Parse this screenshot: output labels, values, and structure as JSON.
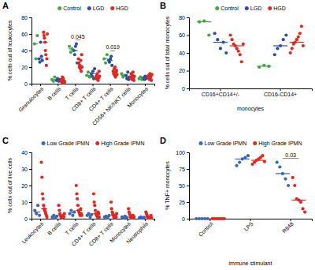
{
  "chart_data": [
    {
      "type": "scatter",
      "title": "A",
      "y_label": "% cells out of leukocytes",
      "legend": "top",
      "categories": [
        "Granulocytes",
        "B cells",
        "T cells",
        "CD8+ T cells",
        "CD4+ T cells",
        "CD56+ NK/NKT cells",
        "Monocytes"
      ],
      "ylim": [
        0,
        80
      ],
      "yticks": [
        0,
        20,
        40,
        60,
        80
      ],
      "series": [
        {
          "name": "Control",
          "color": "#43a843",
          "marker": "circle",
          "values": [
            [
              48,
              30,
              58
            ],
            [
              5,
              3,
              8
            ],
            [
              45,
              38,
              42
            ],
            [
              10,
              14,
              8
            ],
            [
              30,
              25,
              35
            ],
            [
              12,
              8,
              10
            ],
            [
              6,
              8,
              5
            ]
          ],
          "medians": [
            48,
            5,
            42,
            10,
            30,
            10,
            6
          ]
        },
        {
          "name": "LGD",
          "color": "#2f4fa3",
          "marker": "circle",
          "values": [
            [
              30,
              26,
              50,
              33,
              28
            ],
            [
              4,
              6,
              3,
              5
            ],
            [
              40,
              35,
              45,
              48,
              25
            ],
            [
              12,
              9,
              15,
              6,
              18
            ],
            [
              28,
              26,
              30,
              33,
              22
            ],
            [
              10,
              6,
              14,
              5,
              8
            ],
            [
              7,
              5,
              9,
              6,
              8
            ]
          ],
          "medians": [
            30,
            4.5,
            40,
            12,
            28,
            8,
            7
          ]
        },
        {
          "name": "HGD",
          "color": "#e5261f",
          "marker": "circle",
          "values": [
            [
              62,
              58,
              55,
              50,
              40,
              35,
              22,
              30,
              60
            ],
            [
              3,
              5,
              2,
              8,
              4,
              6,
              1,
              3,
              2
            ],
            [
              30,
              25,
              20,
              22,
              18,
              28,
              15,
              35,
              20
            ],
            [
              8,
              6,
              10,
              12,
              5,
              4,
              7,
              15,
              9
            ],
            [
              15,
              12,
              18,
              10,
              20,
              8,
              14,
              16,
              11
            ],
            [
              8,
              12,
              6,
              5,
              10,
              14,
              7,
              4,
              9
            ],
            [
              8,
              10,
              6,
              5,
              12,
              7,
              9,
              4,
              11
            ]
          ],
          "medians": [
            50,
            3,
            22,
            8,
            14,
            8,
            8
          ]
        }
      ],
      "annotations": [
        {
          "text": "0.045",
          "category": "T cells"
        },
        {
          "text": "0.019",
          "category": "CD4+ T cells"
        }
      ]
    },
    {
      "type": "scatter",
      "title": "B",
      "y_label": "% cells out of total monocytes",
      "x_label": "monocytes",
      "legend": "top",
      "categories": [
        "CD16+CD14+/-",
        "CD16-CD14+"
      ],
      "ylim": [
        0,
        80
      ],
      "yticks": [
        0,
        20,
        40,
        60,
        80
      ],
      "series": [
        {
          "name": "Control",
          "color": "#43a843",
          "marker": "circle",
          "values": [
            [
              75,
              76,
              60
            ],
            [
              24,
              26,
              25
            ]
          ],
          "medians": [
            75,
            25
          ]
        },
        {
          "name": "LGD",
          "color": "#2f4fa3",
          "marker": "circle",
          "values": [
            [
              62,
              55,
              45,
              52,
              40
            ],
            [
              38,
              45,
              48,
              55,
              60
            ]
          ],
          "medians": [
            52,
            48
          ]
        },
        {
          "name": "HGD",
          "color": "#e5261f",
          "marker": "circle",
          "values": [
            [
              60,
              55,
              50,
              48,
              45,
              42,
              38,
              30,
              50
            ],
            [
              40,
              45,
              50,
              52,
              55,
              58,
              62,
              70,
              48
            ]
          ],
          "medians": [
            48,
            52
          ]
        }
      ]
    },
    {
      "type": "scatter",
      "title": "C",
      "y_label": "% cells out of live cells",
      "legend": "top",
      "categories": [
        "Leukocytes",
        "B cells",
        "T cells",
        "CD4+ T cells",
        "CD8+ T cells",
        "Monocytes",
        "Neutrophils"
      ],
      "ylim": [
        0,
        40
      ],
      "yticks": [
        0,
        10,
        20,
        30,
        40
      ],
      "series": [
        {
          "name": "Low Grade IPMN",
          "color": "#3a67b8",
          "marker": "circle",
          "values": [
            [
              5,
              3,
              8,
              2
            ],
            [
              1,
              2,
              0.5,
              1.5
            ],
            [
              3,
              5,
              2,
              4
            ],
            [
              2,
              3,
              1,
              2.5
            ],
            [
              1,
              1.5,
              0.5,
              2
            ],
            [
              1,
              0.5,
              1.5,
              0.8
            ],
            [
              0.5,
              1,
              0.3,
              0.8
            ]
          ],
          "medians": [
            4,
            1.2,
            3.5,
            2.2,
            1.2,
            0.9,
            0.6
          ]
        },
        {
          "name": "High Grade IPMN",
          "color": "#e5261f",
          "marker": "circle",
          "values": [
            [
              34,
              25,
              15,
              12,
              8,
              6,
              5,
              4,
              3,
              2,
              1
            ],
            [
              8,
              5,
              3,
              2,
              1,
              1,
              0.5,
              0.5,
              2,
              1,
              3
            ],
            [
              20,
              15,
              12,
              8,
              5,
              4,
              3,
              2,
              6,
              3,
              2
            ],
            [
              15,
              10,
              8,
              5,
              3,
              2,
              2,
              1,
              4,
              3,
              1
            ],
            [
              10,
              6,
              4,
              3,
              2,
              1,
              1,
              0.5,
              2,
              1,
              3
            ],
            [
              6,
              4,
              3,
              2,
              1,
              1,
              0.5,
              0.5,
              2,
              1,
              1
            ],
            [
              4,
              3,
              2,
              1,
              1,
              0.5,
              0.5,
              0.3,
              1,
              2,
              0.5
            ]
          ],
          "medians": [
            6,
            2,
            5,
            3,
            2,
            1,
            1
          ]
        }
      ]
    },
    {
      "type": "scatter",
      "title": "D",
      "y_label": "% TNF+ monocytes",
      "x_label": "immune stimulant",
      "legend": "top",
      "categories": [
        "Control",
        "LPS",
        "R848"
      ],
      "ylim": [
        0,
        100
      ],
      "yticks": [
        0,
        25,
        50,
        75,
        100
      ],
      "series": [
        {
          "name": "Low Grade IPMN",
          "color": "#3a67b8",
          "marker": "circle",
          "values": [
            [
              0,
              0,
              0,
              0,
              0
            ],
            [
              80,
              85,
              90,
              92,
              95
            ],
            [
              85,
              78,
              68,
              60,
              50
            ]
          ],
          "medians": [
            0,
            90,
            68
          ]
        },
        {
          "name": "High Grade IPMN",
          "color": "#e5261f",
          "marker": "circle",
          "values": [
            [
              0,
              0,
              0,
              0,
              0,
              0,
              0
            ],
            [
              82,
              85,
              88,
              90,
              92,
              95,
              86
            ],
            [
              62,
              50,
              30,
              28,
              25,
              15,
              10
            ]
          ],
          "medians": [
            0,
            88,
            28
          ]
        }
      ],
      "annotations": [
        {
          "text": "0.03",
          "category": "R848"
        }
      ]
    }
  ]
}
